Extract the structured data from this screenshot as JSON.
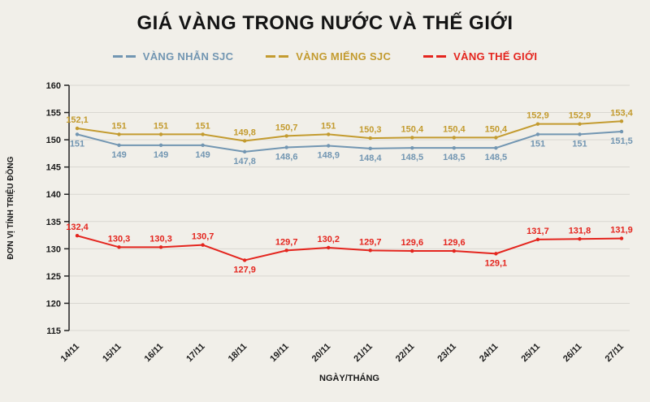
{
  "page": {
    "background": "#f1efe9",
    "gridline_color": "#d9d7d1",
    "axis_color": "#222222",
    "text_color": "#1a1a1a"
  },
  "chart_data": {
    "type": "line",
    "title": "GIÁ VÀNG TRONG NƯỚC VÀ THẾ GIỚI",
    "xlabel": "NGÀY/THÁNG",
    "ylabel": "ĐƠN VỊ TÍNH TRIỆU ĐỒNG",
    "categories": [
      "14/11",
      "15/11",
      "16/11",
      "17/11",
      "18/11",
      "19/11",
      "20/11",
      "21/11",
      "22/11",
      "23/11",
      "24/11",
      "25/11",
      "26/11",
      "27/11"
    ],
    "ylim": [
      115,
      160
    ],
    "ytick_step": 5,
    "grid": true,
    "legend_position": "top",
    "series": [
      {
        "name": "VÀNG NHẪN SJC",
        "color": "#7296b2",
        "label_side": "below",
        "values": [
          151,
          149,
          149,
          149,
          147.8,
          148.6,
          148.9,
          148.4,
          148.5,
          148.5,
          148.5,
          151,
          151,
          151.5
        ]
      },
      {
        "name": "VÀNG MIẾNG SJC",
        "color": "#c39b2f",
        "label_side": "above",
        "values": [
          152.1,
          151,
          151,
          151,
          149.8,
          150.7,
          151,
          150.3,
          150.4,
          150.4,
          150.4,
          152.9,
          152.9,
          153.4
        ]
      },
      {
        "name": "VÀNG THẾ GIỚI",
        "color": "#e4251e",
        "label_side": "above",
        "label_below_indices": [
          4,
          10
        ],
        "values": [
          132.4,
          130.3,
          130.3,
          130.7,
          127.9,
          129.7,
          130.2,
          129.7,
          129.6,
          129.6,
          129.1,
          131.7,
          131.8,
          131.9
        ]
      }
    ]
  }
}
